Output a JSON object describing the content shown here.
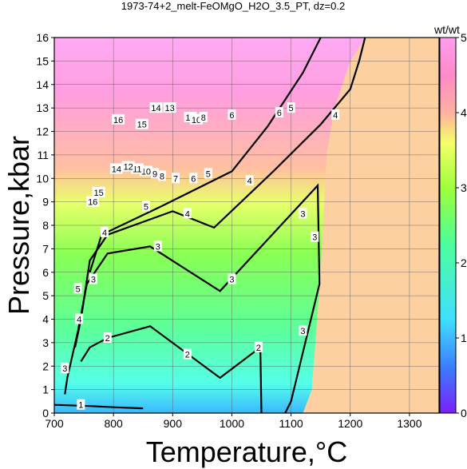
{
  "chart_data": {
    "type": "heatmap",
    "title": "1973-74+2_melt-FeOMgO_H2O_3.5_PT, dz=0.2",
    "xlabel": "Temperature,°C",
    "ylabel": "Pressure,kbar",
    "xlim": [
      700,
      1350
    ],
    "ylim": [
      0,
      16
    ],
    "xticks": [
      "700",
      "800",
      "900",
      "1000",
      "1100",
      "1200",
      "1300"
    ],
    "yticks": [
      "0",
      "1",
      "2",
      "3",
      "4",
      "5",
      "6",
      "7",
      "8",
      "9",
      "10",
      "11",
      "12",
      "13",
      "14",
      "15",
      "16"
    ],
    "grid": true,
    "colorbar": {
      "unit": "wt/wt",
      "range": [
        0,
        5
      ],
      "ticks": [
        "0",
        "1",
        "2",
        "3",
        "4",
        "5"
      ],
      "stops": [
        "#7a20ff",
        "#3b7cff",
        "#40e0ff",
        "#4dff9a",
        "#9eff3a",
        "#f5ff6a",
        "#ffb0a0",
        "#ff8ac8",
        "#ff9ef0"
      ]
    },
    "beyond_liquidus_color": "#fdd0a2",
    "contours": [
      {
        "level": "1",
        "points": [
          [
            700,
            0.35
          ],
          [
            760,
            0.3
          ],
          [
            800,
            0.25
          ],
          [
            850,
            0.2
          ]
        ]
      },
      {
        "level": "2",
        "points": [
          [
            745,
            2.2
          ],
          [
            760,
            2.8
          ],
          [
            790,
            3.2
          ],
          [
            862,
            3.7
          ],
          [
            980,
            1.5
          ],
          [
            1048,
            2.8
          ],
          [
            1050,
            0.0
          ]
        ]
      },
      {
        "level": "3",
        "points": [
          [
            718,
            0.8
          ],
          [
            722,
            1.5
          ],
          [
            740,
            3.5
          ],
          [
            755,
            5.5
          ],
          [
            790,
            6.8
          ],
          [
            862,
            7.1
          ],
          [
            980,
            5.2
          ],
          [
            1145,
            9.7
          ],
          [
            1148,
            5.5
          ],
          [
            1100,
            0.5
          ],
          [
            1090,
            0.0
          ]
        ]
      },
      {
        "level": "4",
        "points": [
          [
            735,
            2.8
          ],
          [
            745,
            4.0
          ],
          [
            760,
            6.5
          ],
          [
            790,
            7.6
          ],
          [
            900,
            8.6
          ],
          [
            970,
            7.9
          ],
          [
            1070,
            10.3
          ],
          [
            1150,
            12.3
          ],
          [
            1200,
            13.8
          ],
          [
            1215,
            15.0
          ],
          [
            1225,
            16.0
          ]
        ]
      },
      {
        "level": "5",
        "points": [
          [
            760,
            6.0
          ],
          [
            780,
            7.6
          ],
          [
            880,
            8.8
          ],
          [
            1000,
            10.3
          ],
          [
            1060,
            12.2
          ],
          [
            1120,
            14.5
          ],
          [
            1150,
            16.0
          ]
        ]
      }
    ],
    "contour_labels": [
      {
        "text": "1",
        "x": 745,
        "y": 0.35
      },
      {
        "text": "2",
        "x": 790,
        "y": 3.2
      },
      {
        "text": "2",
        "x": 925,
        "y": 2.5
      },
      {
        "text": "2",
        "x": 1045,
        "y": 2.8
      },
      {
        "text": "3",
        "x": 718,
        "y": 1.9
      },
      {
        "text": "3",
        "x": 766,
        "y": 5.7
      },
      {
        "text": "3",
        "x": 875,
        "y": 7.1
      },
      {
        "text": "3",
        "x": 1000,
        "y": 5.7
      },
      {
        "text": "3",
        "x": 1120,
        "y": 8.5
      },
      {
        "text": "3",
        "x": 1140,
        "y": 7.5
      },
      {
        "text": "3",
        "x": 1120,
        "y": 3.5
      },
      {
        "text": "4",
        "x": 742,
        "y": 4.0
      },
      {
        "text": "4",
        "x": 785,
        "y": 7.7
      },
      {
        "text": "4",
        "x": 925,
        "y": 8.5
      },
      {
        "text": "4",
        "x": 1030,
        "y": 9.9
      },
      {
        "text": "4",
        "x": 1175,
        "y": 12.7
      },
      {
        "text": "5",
        "x": 740,
        "y": 5.3
      },
      {
        "text": "5",
        "x": 855,
        "y": 8.8
      },
      {
        "text": "5",
        "x": 960,
        "y": 10.2
      },
      {
        "text": "5",
        "x": 1100,
        "y": 13.0
      },
      {
        "text": "6",
        "x": 935,
        "y": 10.0
      },
      {
        "text": "6",
        "x": 1080,
        "y": 12.8
      },
      {
        "text": "7",
        "x": 905,
        "y": 10.0
      },
      {
        "text": "8",
        "x": 882,
        "y": 10.1
      },
      {
        "text": "9",
        "x": 870,
        "y": 10.2
      },
      {
        "text": "10",
        "x": 855,
        "y": 10.3
      },
      {
        "text": "11",
        "x": 840,
        "y": 10.4
      },
      {
        "text": "12",
        "x": 825,
        "y": 10.5
      },
      {
        "text": "14",
        "x": 805,
        "y": 10.4
      },
      {
        "text": "15",
        "x": 775,
        "y": 9.4
      },
      {
        "text": "16",
        "x": 765,
        "y": 9.0
      },
      {
        "text": "16",
        "x": 808,
        "y": 12.5
      },
      {
        "text": "15",
        "x": 848,
        "y": 12.3
      },
      {
        "text": "14",
        "x": 872,
        "y": 13.0
      },
      {
        "text": "13",
        "x": 895,
        "y": 13.0
      },
      {
        "text": "12",
        "x": 930,
        "y": 12.6
      },
      {
        "text": "10",
        "x": 940,
        "y": 12.5
      },
      {
        "text": "8",
        "x": 952,
        "y": 12.6
      },
      {
        "text": "6",
        "x": 1000,
        "y": 12.7
      }
    ]
  }
}
